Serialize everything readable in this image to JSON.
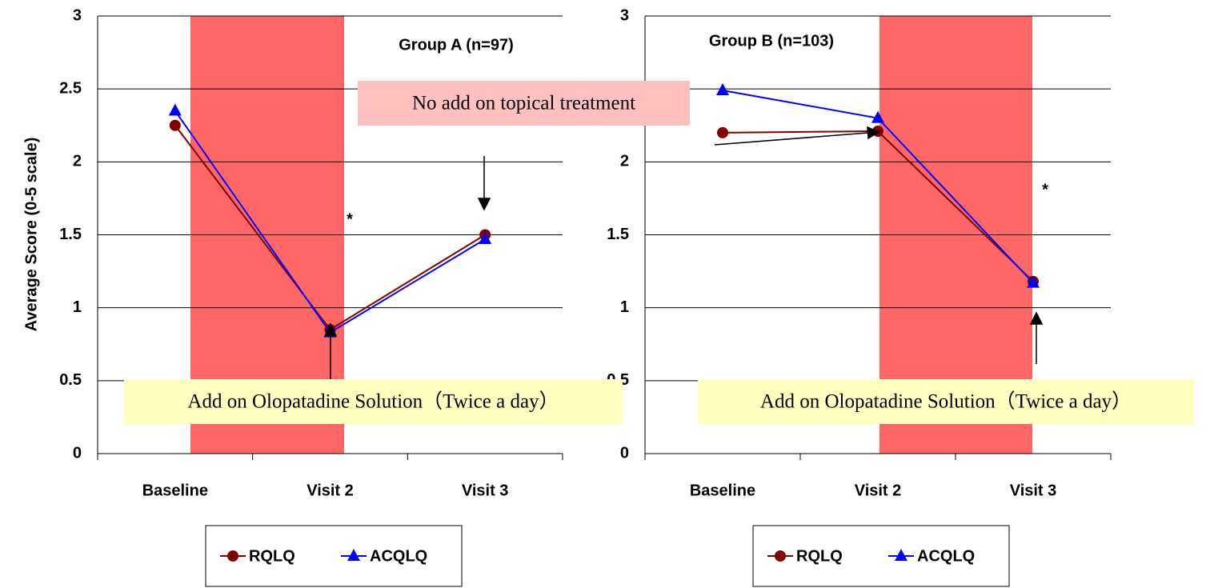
{
  "chart_data": [
    {
      "type": "line",
      "title": "Group A (n=97)",
      "y_label": "Average Score (0-5 scale)",
      "categories": [
        "Baseline",
        "Visit 2",
        "Visit 3"
      ],
      "series": [
        {
          "name": "RQLQ",
          "color": "#800000",
          "marker": "circle",
          "values": [
            2.25,
            0.85,
            1.5
          ]
        },
        {
          "name": "ACQLQ",
          "color": "#0000ff",
          "marker": "triangle",
          "values": [
            2.35,
            0.83,
            1.47
          ]
        }
      ],
      "ylim": [
        0,
        3
      ],
      "yticks": [
        0,
        0.5,
        1,
        1.5,
        2,
        2.5,
        3
      ],
      "grid": true,
      "annotations": [
        "*",
        "No add on topical treatment",
        "Add on Olopatadine Solution（Twice a day）"
      ]
    },
    {
      "type": "line",
      "title": "Group B (n=103)",
      "categories": [
        "Baseline",
        "Visit 2",
        "Visit 3"
      ],
      "series": [
        {
          "name": "RQLQ",
          "color": "#800000",
          "marker": "circle",
          "values": [
            2.2,
            2.21,
            1.18
          ]
        },
        {
          "name": "ACQLQ",
          "color": "#0000ff",
          "marker": "triangle",
          "values": [
            2.49,
            2.3,
            1.17
          ]
        }
      ],
      "ylim": [
        0,
        3
      ],
      "yticks": [
        0,
        0.5,
        1,
        1.5,
        2,
        2.5,
        3
      ],
      "grid": true,
      "annotations": [
        "*",
        "Add on Olopatadine Solution（Twice a day）"
      ]
    }
  ]
}
